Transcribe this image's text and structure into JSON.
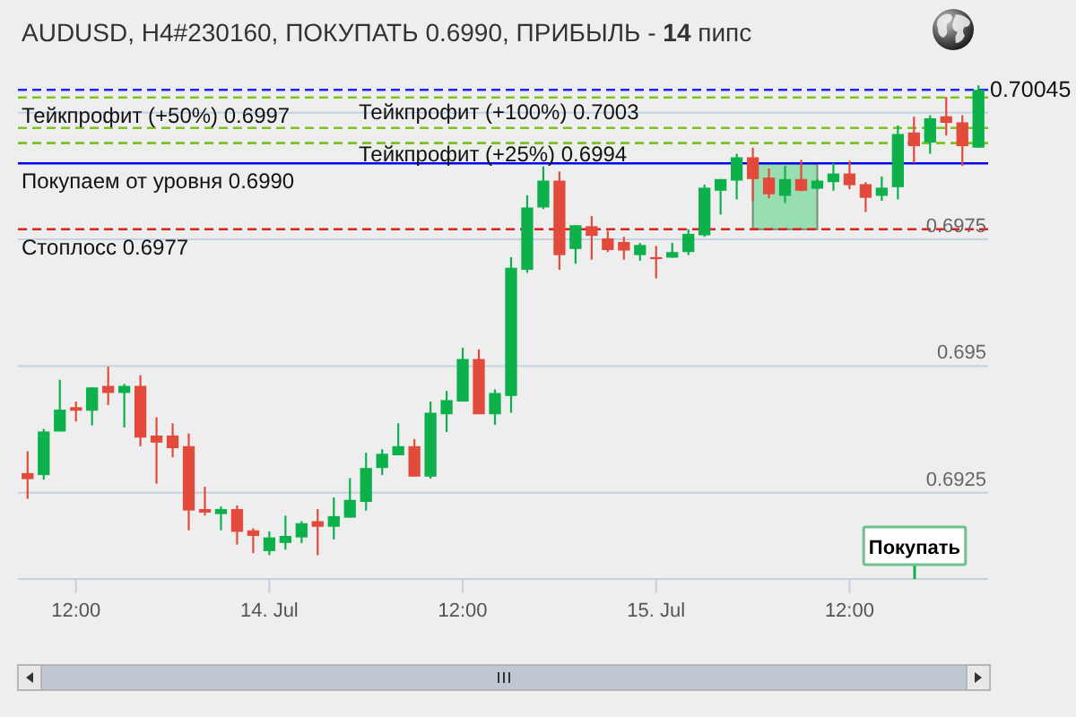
{
  "chart_data": {
    "type": "candlestick",
    "title": "AUDUSD, H4#230160, ПОКУПАТЬ 0.6990, ПРИБЫЛЬ - 14 пипс",
    "x": [
      "--07-13T09:00",
      "--07-13T10:00",
      "--07-13T11:00",
      "--07-13T12:00",
      "--07-13T13:00",
      "--07-13T14:00",
      "--07-13T15:00",
      "--07-13T16:00",
      "--07-13T17:00",
      "--07-13T18:00",
      "--07-13T19:00",
      "--07-13T20:00",
      "--07-13T21:00",
      "--07-13T22:00",
      "--07-13T23:00",
      "--07-14T00:00",
      "--07-14T01:00",
      "--07-14T02:00",
      "--07-14T03:00",
      "--07-14T04:00",
      "--07-14T05:00",
      "--07-14T06:00",
      "--07-14T07:00",
      "--07-14T08:00",
      "--07-14T09:00",
      "--07-14T10:00",
      "--07-14T11:00",
      "--07-14T12:00",
      "--07-14T13:00",
      "--07-14T14:00",
      "--07-14T15:00",
      "--07-14T16:00",
      "--07-14T17:00",
      "--07-14T18:00",
      "--07-14T19:00",
      "--07-14T20:00",
      "--07-14T21:00",
      "--07-14T22:00",
      "--07-14T23:00",
      "--07-15T00:00",
      "--07-15T01:00",
      "--07-15T02:00",
      "--07-15T03:00",
      "--07-15T04:00",
      "--07-15T05:00",
      "--07-15T06:00",
      "--07-15T07:00",
      "--07-15T08:00",
      "--07-15T09:00",
      "--07-15T10:00",
      "--07-15T11:00",
      "--07-15T12:00",
      "--07-15T13:00",
      "--07-15T14:00",
      "--07-15T15:00",
      "--07-15T16:00",
      "--07-15T17:00",
      "--07-15T18:00",
      "--07-15T19:00",
      "--07-15T20:00"
    ],
    "ohlc": [
      [
        0.69289,
        0.69332,
        0.69238,
        0.69277
      ],
      [
        0.69285,
        0.69376,
        0.69276,
        0.69371
      ],
      [
        0.69371,
        0.69473,
        0.69371,
        0.69414
      ],
      [
        0.69419,
        0.6943,
        0.69391,
        0.69412
      ],
      [
        0.69412,
        0.69458,
        0.69383,
        0.69458
      ],
      [
        0.69461,
        0.69499,
        0.69423,
        0.69447
      ],
      [
        0.69447,
        0.69465,
        0.69379,
        0.69461
      ],
      [
        0.69461,
        0.69482,
        0.69342,
        0.69359
      ],
      [
        0.69363,
        0.69399,
        0.69268,
        0.69349
      ],
      [
        0.69363,
        0.69387,
        0.6932,
        0.69338
      ],
      [
        0.69342,
        0.69367,
        0.69176,
        0.69215
      ],
      [
        0.69218,
        0.69262,
        0.69205,
        0.69211
      ],
      [
        0.69208,
        0.69223,
        0.69176,
        0.69218
      ],
      [
        0.69218,
        0.69225,
        0.69148,
        0.69173
      ],
      [
        0.69176,
        0.6918,
        0.69131,
        0.69165
      ],
      [
        0.69135,
        0.69174,
        0.69127,
        0.69162
      ],
      [
        0.69151,
        0.69205,
        0.69138,
        0.69165
      ],
      [
        0.69162,
        0.69194,
        0.69151,
        0.6919
      ],
      [
        0.69194,
        0.69218,
        0.69127,
        0.69183
      ],
      [
        0.69183,
        0.69241,
        0.69158,
        0.69204
      ],
      [
        0.69201,
        0.69279,
        0.69201,
        0.69236
      ],
      [
        0.69232,
        0.69329,
        0.69215,
        0.69299
      ],
      [
        0.69299,
        0.69336,
        0.69285,
        0.69327
      ],
      [
        0.69324,
        0.69387,
        0.69324,
        0.69342
      ],
      [
        0.69342,
        0.69356,
        0.69282,
        0.69282
      ],
      [
        0.69282,
        0.6943,
        0.69278,
        0.69408
      ],
      [
        0.69405,
        0.69451,
        0.6937,
        0.69433
      ],
      [
        0.6943,
        0.69536,
        0.6943,
        0.69514
      ],
      [
        0.69514,
        0.69533,
        0.69405,
        0.69405
      ],
      [
        0.69405,
        0.69454,
        0.69384,
        0.69447
      ],
      [
        0.69441,
        0.69715,
        0.69408,
        0.69694
      ],
      [
        0.6969,
        0.69837,
        0.69684,
        0.69813
      ],
      [
        0.69813,
        0.69894,
        0.6981,
        0.69866
      ],
      [
        0.69866,
        0.69884,
        0.6969,
        0.69719
      ],
      [
        0.69731,
        0.69778,
        0.69702,
        0.69778
      ],
      [
        0.69776,
        0.69796,
        0.6971,
        0.69757
      ],
      [
        0.69752,
        0.69767,
        0.69725,
        0.69729
      ],
      [
        0.69745,
        0.69755,
        0.6971,
        0.69728
      ],
      [
        0.69719,
        0.69743,
        0.69708,
        0.69739
      ],
      [
        0.69715,
        0.69737,
        0.69673,
        0.69711
      ],
      [
        0.69714,
        0.69743,
        0.69714,
        0.69725
      ],
      [
        0.69725,
        0.6977,
        0.69719,
        0.69761
      ],
      [
        0.69758,
        0.69858,
        0.69755,
        0.69852
      ],
      [
        0.69846,
        0.69869,
        0.69799,
        0.69869
      ],
      [
        0.69866,
        0.69919,
        0.69829,
        0.69912
      ],
      [
        0.69912,
        0.69931,
        0.69825,
        0.69869
      ],
      [
        0.69872,
        0.6989,
        0.69831,
        0.69839
      ],
      [
        0.69836,
        0.69895,
        0.69822,
        0.69869
      ],
      [
        0.69869,
        0.69907,
        0.69845,
        0.69846
      ],
      [
        0.6985,
        0.69869,
        0.69848,
        0.69866
      ],
      [
        0.69863,
        0.69901,
        0.69846,
        0.6988
      ],
      [
        0.6988,
        0.69905,
        0.69849,
        0.69857
      ],
      [
        0.69859,
        0.69863,
        0.69804,
        0.69832
      ],
      [
        0.69836,
        0.69874,
        0.69826,
        0.69852
      ],
      [
        0.69853,
        0.69975,
        0.69829,
        0.69958
      ],
      [
        0.69961,
        0.69992,
        0.69901,
        0.69934
      ],
      [
        0.69941,
        0.69995,
        0.69919,
        0.69989
      ],
      [
        0.69993,
        0.70031,
        0.69955,
        0.6998
      ],
      [
        0.69981,
        0.69995,
        0.69895,
        0.69934
      ],
      [
        0.69931,
        0.70054,
        0.69931,
        0.70045
      ]
    ],
    "colors": [
      "#e24b3b",
      "#0db14b",
      "#0db14b",
      "#e24b3b",
      "#0db14b",
      "#e24b3b",
      "#0db14b",
      "#e24b3b",
      "#e24b3b",
      "#e24b3b",
      "#e24b3b",
      "#e24b3b",
      "#0db14b",
      "#e24b3b",
      "#e24b3b",
      "#0db14b",
      "#0db14b",
      "#0db14b",
      "#e24b3b",
      "#0db14b",
      "#0db14b",
      "#0db14b",
      "#0db14b",
      "#0db14b",
      "#e24b3b",
      "#0db14b",
      "#0db14b",
      "#0db14b",
      "#e24b3b",
      "#0db14b",
      "#0db14b",
      "#0db14b",
      "#0db14b",
      "#e24b3b",
      "#0db14b",
      "#e24b3b",
      "#e24b3b",
      "#e24b3b",
      "#0db14b",
      "#e24b3b",
      "#0db14b",
      "#0db14b",
      "#0db14b",
      "#0db14b",
      "#0db14b",
      "#e24b3b",
      "#e24b3b",
      "#0db14b",
      "#e24b3b",
      "#0db14b",
      "#0db14b",
      "#e24b3b",
      "#e24b3b",
      "#0db14b",
      "#0db14b",
      "#e24b3b",
      "#0db14b",
      "#e24b3b",
      "#e24b3b",
      "#0db14b"
    ],
    "xlim": [
      "--07-13T08:24",
      "--07-15T20:36"
    ],
    "xticks": [
      {
        "value": "--07-13T12:00",
        "label": "12:00"
      },
      {
        "value": "--07-14",
        "label": "14. Jul"
      },
      {
        "value": "--07-14T12:00",
        "label": "12:00"
      },
      {
        "value": "--07-15",
        "label": "15. Jul"
      },
      {
        "value": "--07-15T12:00",
        "label": "12:00"
      }
    ],
    "ylim": [
      0.6908,
      0.70054
    ],
    "yticks": [
      0.6925,
      0.695,
      0.6975,
      {
        "value": 0.7,
        "label": null
      }
    ],
    "grid": "y",
    "ref_lines": [
      {
        "axis": "y",
        "value": 0.70045,
        "label": "0.70045",
        "color": "#1f1fff",
        "line_style": "dashed"
      },
      {
        "axis": "y",
        "value": 0.7003,
        "label": "Тейкпрофит (+100%) 0.7003",
        "color": "#7cc41a",
        "line_style": "dashed"
      },
      {
        "axis": "y",
        "value": 0.6997,
        "label": "Тейкпрофит (+50%) 0.6997",
        "color": "#7cc41a",
        "line_style": "dashed"
      },
      {
        "axis": "y",
        "value": 0.6994,
        "label": "Тейкпрофит (+25%) 0.6994",
        "color": "#7cc41a",
        "line_style": "dashed"
      },
      {
        "axis": "y",
        "value": 0.699,
        "label": "Покупаем от уровня 0.6990",
        "color": "#0000ee",
        "line_style": "solid"
      },
      {
        "axis": "y",
        "value": 0.6977,
        "label": "Стоплосс 0.6977",
        "color": "#e0201c",
        "line_style": "dashed"
      }
    ],
    "bands": [
      {
        "axis": "x",
        "from": "--07-15T06:00",
        "to": "--07-15T10:00",
        "color": "#8fdcaa"
      }
    ],
    "annotations": [
      "Покупать"
    ]
  }
}
